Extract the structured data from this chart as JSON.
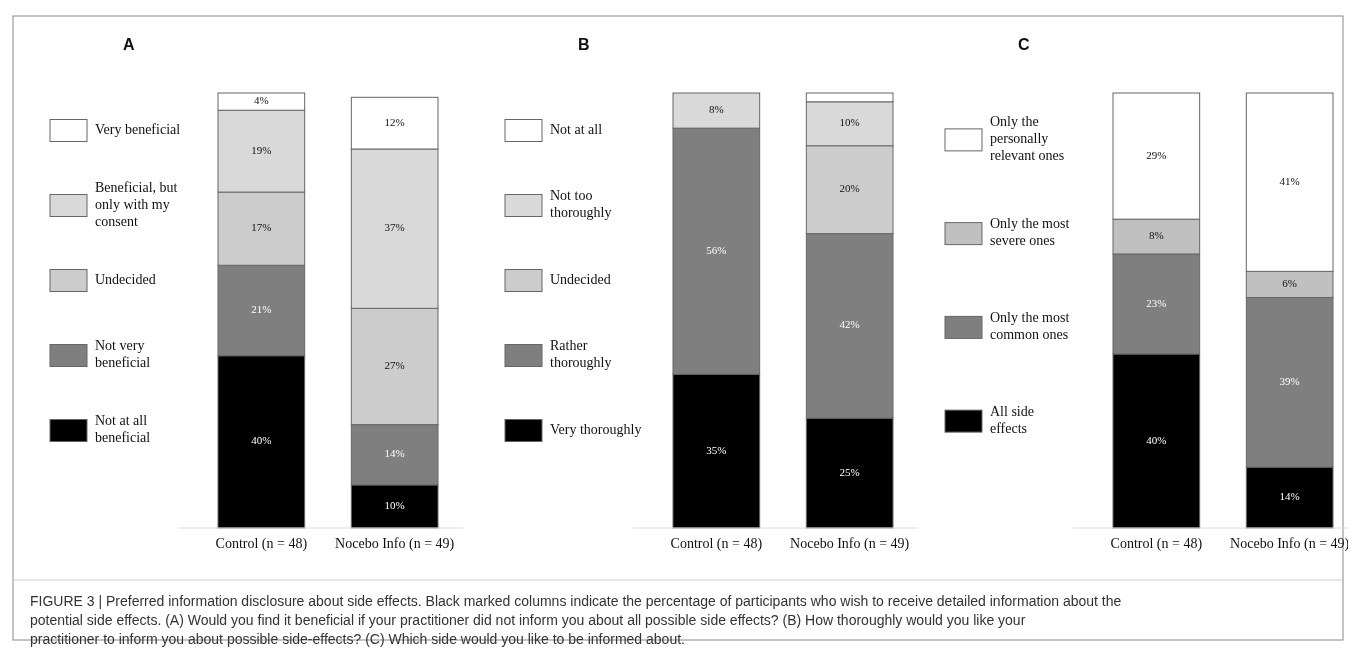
{
  "chart_data": [
    {
      "type": "bar",
      "title": "A",
      "stacked": true,
      "legend": "left",
      "categories": [
        "Control (n = 48)",
        "Nocebo Info (n = 49)"
      ],
      "series": [
        {
          "name": "Not at all beneficial",
          "color": "#000000",
          "values": [
            40,
            10
          ],
          "value_labels": [
            "40%",
            "10%"
          ]
        },
        {
          "name": "Not very beneficial",
          "color": "#7f7f7f",
          "values": [
            21,
            14
          ],
          "value_labels": [
            "21%",
            "14%"
          ]
        },
        {
          "name": "Undecided",
          "color": "#cccccc",
          "values": [
            17,
            27
          ],
          "value_labels": [
            "17%",
            "27%"
          ]
        },
        {
          "name": "Beneficial, but only with my consent",
          "color": "#d9d9d9",
          "values": [
            19,
            37
          ],
          "value_labels": [
            "19%",
            "37%"
          ]
        },
        {
          "name": "Very beneficial",
          "color": "#ffffff",
          "values": [
            4,
            12
          ],
          "value_labels": [
            "4%",
            "12%"
          ]
        }
      ],
      "annotations": [
        "FIGURE 3 | Preferred information disclosure about side effects. Black marked columns indicate the percentage of participants who wish to receive detailed information about the potential side effects. (A) Would you find it beneficial if your practitioner did not inform you about all possible side effects? (B) How thoroughly would you like your practitioner to inform you about possible side-effects? (C) Which side would you like to be informed about."
      ]
    },
    {
      "type": "bar",
      "title": "B",
      "stacked": true,
      "legend": "left",
      "categories": [
        "Control (n = 48)",
        "Nocebo Info (n = 49)"
      ],
      "series": [
        {
          "name": "Very thoroughly",
          "color": "#000000",
          "values": [
            35,
            25
          ],
          "value_labels": [
            "35%",
            "25%"
          ]
        },
        {
          "name": "Rather thoroughly",
          "color": "#7f7f7f",
          "values": [
            56,
            42
          ],
          "value_labels": [
            "56%",
            "42%"
          ]
        },
        {
          "name": "Undecided",
          "color": "#cccccc",
          "values": [
            null,
            20
          ],
          "value_labels": [
            null,
            "20%"
          ]
        },
        {
          "name": "Not too thoroughly",
          "color": "#d9d9d9",
          "values": [
            8,
            10
          ],
          "value_labels": [
            "8%",
            "10%"
          ]
        },
        {
          "name": "Not at all",
          "color": "#ffffff",
          "values": [
            null,
            2
          ],
          "value_labels": [
            null,
            null
          ]
        }
      ]
    },
    {
      "type": "bar",
      "title": "C",
      "stacked": true,
      "legend": "left",
      "categories": [
        "Control (n = 48)",
        "Nocebo Info (n = 49)"
      ],
      "series": [
        {
          "name": "All side effects",
          "color": "#000000",
          "values": [
            40,
            14
          ],
          "value_labels": [
            "40%",
            "14%"
          ]
        },
        {
          "name": "Only the most common ones",
          "color": "#7f7f7f",
          "values": [
            23,
            39
          ],
          "value_labels": [
            "23%",
            "39%"
          ]
        },
        {
          "name": "Only the most severe ones",
          "color": "#c0c0c0",
          "values": [
            8,
            6
          ],
          "value_labels": [
            "8%",
            "6%"
          ]
        },
        {
          "name": "Only the personally relevant ones",
          "color": "#ffffff",
          "values": [
            29,
            41
          ],
          "value_labels": [
            "29%",
            "41%"
          ]
        }
      ]
    }
  ]
}
